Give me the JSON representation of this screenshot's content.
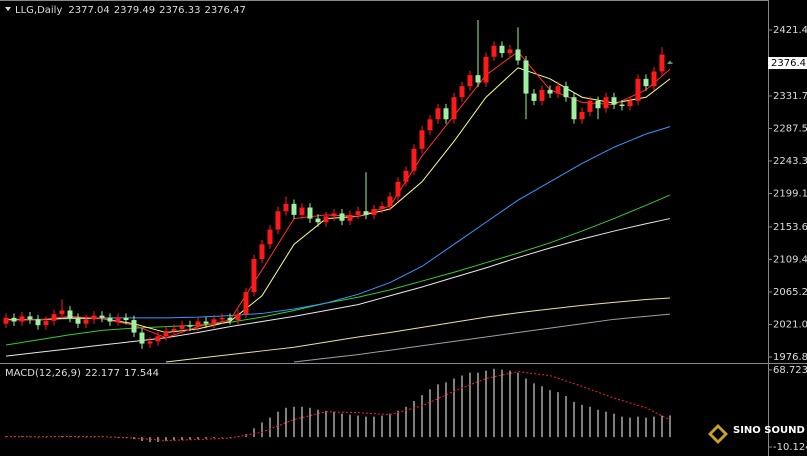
{
  "chart_data": [
    {
      "type": "candlestick",
      "title": "LLG,Daily",
      "up_color": "#ff1a1a",
      "down_color": "#9ff09f",
      "grid": false,
      "ylim": [
        1968.6,
        2462.2
      ],
      "yticks": [
        {
          "value": 2421.4,
          "label": "2421.40"
        },
        {
          "value": 2331.7,
          "label": "2331.70"
        },
        {
          "value": 2287.5,
          "label": "2287.50"
        },
        {
          "value": 2243.3,
          "label": "2243.30"
        },
        {
          "value": 2199.1,
          "label": "2199.10"
        },
        {
          "value": 2153.6,
          "label": "2153.60"
        },
        {
          "value": 2109.4,
          "label": "2109.40"
        },
        {
          "value": 2065.2,
          "label": "2065.20"
        },
        {
          "value": 2021,
          "label": "2021.00"
        },
        {
          "value": 1976.8,
          "label": "1976.80"
        }
      ],
      "open": [
        2022,
        2030,
        2025,
        2032,
        2028,
        2020,
        2026,
        2035,
        2040,
        2030,
        2022,
        2028,
        2033,
        2030,
        2025,
        2030,
        2027,
        2010,
        1995,
        1998,
        2005,
        2012,
        2015,
        2020,
        2018,
        2025,
        2022,
        2028,
        2030,
        2027,
        2035,
        2065,
        2110,
        2130,
        2150,
        2175,
        2185,
        2170,
        2180,
        2165,
        2160,
        2168,
        2172,
        2162,
        2170,
        2175,
        2170,
        2178,
        2182,
        2195,
        2215,
        2230,
        2260,
        2285,
        2300,
        2315,
        2300,
        2330,
        2345,
        2360,
        2350,
        2385,
        2400,
        2390,
        2395,
        2380,
        2335,
        2325,
        2340,
        2335,
        2345,
        2330,
        2300,
        2310,
        2325,
        2315,
        2330,
        2320,
        2318,
        2325,
        2355,
        2345,
        2365,
        2377.04
      ],
      "high": [
        2036,
        2036,
        2038,
        2038,
        2034,
        2032,
        2041,
        2055,
        2046,
        2036,
        2034,
        2039,
        2039,
        2036,
        2036,
        2036,
        2033,
        2016,
        2004,
        2011,
        2018,
        2021,
        2026,
        2026,
        2031,
        2031,
        2034,
        2036,
        2036,
        2041,
        2071,
        2116,
        2136,
        2156,
        2181,
        2195,
        2191,
        2186,
        2186,
        2171,
        2174,
        2178,
        2178,
        2176,
        2181,
        2228,
        2184,
        2188,
        2201,
        2221,
        2236,
        2266,
        2291,
        2306,
        2321,
        2321,
        2336,
        2351,
        2366,
        2435,
        2391,
        2406,
        2406,
        2401,
        2425,
        2386,
        2341,
        2346,
        2346,
        2351,
        2351,
        2336,
        2316,
        2331,
        2331,
        2336,
        2336,
        2326,
        2331,
        2361,
        2361,
        2371,
        2398,
        2379.49
      ],
      "low": [
        2016,
        2019,
        2019,
        2022,
        2014,
        2014,
        2020,
        2029,
        2024,
        2016,
        2016,
        2022,
        2024,
        2019,
        2019,
        2021,
        2004,
        1988,
        1989,
        1992,
        1999,
        2006,
        2009,
        2012,
        2012,
        2016,
        2016,
        2022,
        2021,
        2021,
        2029,
        2059,
        2104,
        2124,
        2144,
        2169,
        2164,
        2164,
        2159,
        2154,
        2154,
        2162,
        2156,
        2156,
        2164,
        2164,
        2164,
        2172,
        2176,
        2189,
        2209,
        2224,
        2254,
        2279,
        2294,
        2294,
        2294,
        2324,
        2339,
        2344,
        2344,
        2379,
        2384,
        2384,
        2374,
        2300,
        2319,
        2319,
        2329,
        2329,
        2324,
        2294,
        2294,
        2304,
        2300,
        2309,
        2314,
        2312,
        2312,
        2319,
        2339,
        2339,
        2359,
        2376.33
      ],
      "close": [
        2030,
        2025,
        2032,
        2028,
        2020,
        2026,
        2035,
        2040,
        2030,
        2022,
        2028,
        2033,
        2030,
        2025,
        2030,
        2027,
        2010,
        1995,
        1998,
        2005,
        2012,
        2015,
        2020,
        2018,
        2025,
        2022,
        2028,
        2030,
        2027,
        2035,
        2065,
        2110,
        2130,
        2150,
        2175,
        2185,
        2170,
        2180,
        2165,
        2160,
        2168,
        2172,
        2162,
        2170,
        2175,
        2170,
        2178,
        2182,
        2195,
        2215,
        2230,
        2260,
        2285,
        2300,
        2315,
        2300,
        2330,
        2345,
        2360,
        2350,
        2385,
        2400,
        2390,
        2395,
        2380,
        2335,
        2325,
        2340,
        2335,
        2345,
        2330,
        2300,
        2310,
        2325,
        2315,
        2330,
        2320,
        2318,
        2325,
        2355,
        2345,
        2365,
        2388,
        2376.47
      ],
      "series": [
        {
          "color": "#e8e8e8",
          "x": [
            0,
            4,
            8,
            12,
            16,
            20,
            24,
            28,
            32,
            36,
            40,
            44,
            48,
            52,
            56,
            60,
            64,
            68,
            72,
            76,
            80,
            83
          ],
          "values": [
            1978,
            1983,
            1988,
            1993,
            1998,
            2003,
            2010,
            2018,
            2025,
            2032,
            2040,
            2048,
            2060,
            2072,
            2085,
            2098,
            2112,
            2125,
            2137,
            2148,
            2158,
            2165
          ]
        },
        {
          "color": "#f0e0a0",
          "x": [
            0,
            4,
            8,
            12,
            16,
            20,
            24,
            28,
            32,
            36,
            40,
            44,
            48,
            52,
            56,
            60,
            64,
            68,
            72,
            76,
            80,
            83
          ],
          "values": [
            null,
            null,
            null,
            null,
            null,
            1970,
            1975,
            1980,
            1985,
            1990,
            1997,
            2004,
            2010,
            2017,
            2024,
            2031,
            2037,
            2042,
            2047,
            2051,
            2055,
            2057
          ]
        },
        {
          "color": "#a89aa8",
          "x": [
            0,
            4,
            8,
            12,
            16,
            20,
            24,
            28,
            32,
            36,
            40,
            44,
            48,
            52,
            56,
            60,
            64,
            68,
            72,
            76,
            80,
            83
          ],
          "values": [
            null,
            null,
            null,
            null,
            null,
            null,
            null,
            null,
            null,
            1970,
            1975,
            1980,
            1986,
            1992,
            1998,
            2004,
            2010,
            2016,
            2022,
            2028,
            2032,
            2035
          ]
        },
        {
          "color": "#33cc33",
          "x": [
            0,
            4,
            8,
            12,
            16,
            20,
            24,
            28,
            32,
            36,
            40,
            44,
            48,
            52,
            56,
            60,
            64,
            68,
            72,
            76,
            80,
            83
          ],
          "values": [
            1993,
            2000,
            2007,
            2013,
            2016,
            2018,
            2020,
            2024,
            2031,
            2040,
            2050,
            2058,
            2068,
            2080,
            2092,
            2105,
            2118,
            2132,
            2148,
            2165,
            2183,
            2197
          ]
        },
        {
          "color": "#3399ff",
          "x": [
            0,
            4,
            8,
            12,
            16,
            20,
            24,
            28,
            32,
            36,
            40,
            44,
            48,
            52,
            56,
            60,
            64,
            68,
            72,
            76,
            80,
            83
          ],
          "values": [
            2028,
            2028,
            2029,
            2030,
            2030,
            2030,
            2031,
            2033,
            2036,
            2042,
            2050,
            2062,
            2078,
            2100,
            2130,
            2160,
            2190,
            2215,
            2240,
            2262,
            2280,
            2290
          ]
        },
        {
          "color": "#ffff80",
          "x": [
            0,
            4,
            8,
            12,
            16,
            20,
            24,
            28,
            32,
            36,
            40,
            44,
            48,
            52,
            56,
            60,
            64,
            68,
            72,
            76,
            80,
            83
          ],
          "values": [
            2028,
            2027,
            2030,
            2029,
            2022,
            2010,
            2015,
            2025,
            2060,
            2130,
            2165,
            2168,
            2178,
            2215,
            2270,
            2330,
            2370,
            2355,
            2330,
            2322,
            2330,
            2355
          ]
        },
        {
          "color": "#ff3030",
          "x": [
            0,
            4,
            8,
            12,
            16,
            20,
            24,
            28,
            32,
            36,
            40,
            44,
            48,
            52,
            56,
            60,
            64,
            68,
            72,
            76,
            80,
            83
          ],
          "values": [
            2027,
            2027,
            2032,
            2029,
            2020,
            2003,
            2018,
            2027,
            2095,
            2165,
            2170,
            2168,
            2182,
            2250,
            2305,
            2360,
            2392,
            2340,
            2323,
            2320,
            2340,
            2368
          ]
        }
      ]
    },
    {
      "type": "macd",
      "title": "MACD(12,26,9)",
      "color": "#ffffff",
      "signal_color": "#ff2020",
      "ylim": [
        -13.2,
        73.8
      ],
      "yticks": [
        68.723,
        -10.124
      ],
      "values": [
        1,
        0.5,
        1,
        0.8,
        0,
        -0.5,
        0.5,
        1.2,
        1,
        0,
        -0.3,
        0.4,
        0.6,
        0.2,
        0,
        -0.2,
        -2,
        -4,
        -5,
        -5,
        -4,
        -3.5,
        -3,
        -2.5,
        -2,
        -1.5,
        -1,
        -0.5,
        0,
        0.5,
        3,
        9,
        15,
        20,
        26,
        30,
        31,
        31,
        30,
        28,
        27,
        26,
        24,
        23,
        22,
        21,
        21,
        22,
        24,
        27,
        31,
        37,
        43,
        49,
        54,
        56,
        60,
        63,
        66,
        66,
        68,
        70,
        69,
        68,
        66,
        60,
        55,
        52,
        48,
        46,
        42,
        36,
        33,
        31,
        28,
        26,
        24,
        21,
        20,
        21,
        20,
        21,
        22,
        22.177
      ],
      "signal": {
        "x": [
          0,
          4,
          8,
          12,
          16,
          20,
          24,
          28,
          32,
          36,
          40,
          44,
          48,
          52,
          56,
          60,
          64,
          68,
          72,
          76,
          80,
          83
        ],
        "values": [
          0.5,
          0.4,
          0.6,
          0.5,
          -1,
          -3.5,
          -2.5,
          -1,
          5,
          18,
          26,
          25,
          23,
          32,
          47,
          60,
          67,
          63,
          52,
          40,
          30,
          17.544
        ]
      }
    }
  ],
  "watermark": "SINO SOUND"
}
